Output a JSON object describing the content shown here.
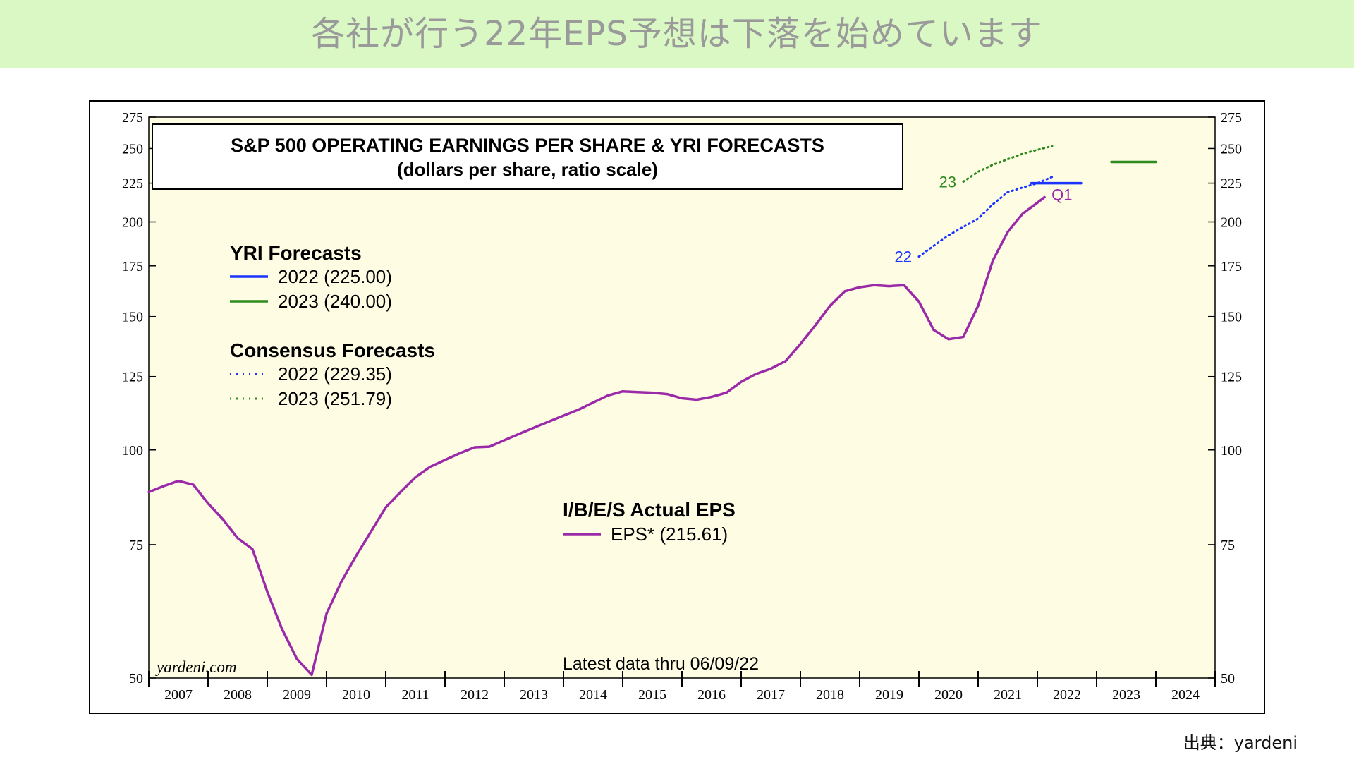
{
  "banner": {
    "title": "各社が行う22年EPS予想は下落を始めています"
  },
  "source": {
    "text": "出典：yardeni"
  },
  "chart_data": {
    "type": "line",
    "title": "S&P 500 OPERATING EARNINGS PER SHARE & YRI FORECASTS",
    "subtitle": "(dollars per share, ratio scale)",
    "y_scale": "log",
    "ylim": [
      50,
      275
    ],
    "yticks": [
      50,
      75,
      100,
      125,
      150,
      175,
      200,
      225,
      250,
      275
    ],
    "xlim": [
      2007,
      2025
    ],
    "x_tick_labels": [
      "2007",
      "2008",
      "2009",
      "2010",
      "2011",
      "2012",
      "2013",
      "2014",
      "2015",
      "2016",
      "2017",
      "2018",
      "2019",
      "2020",
      "2021",
      "2022",
      "2023",
      "2024"
    ],
    "grid": false,
    "background_color": "#fefde4",
    "watermark": "yardeni.com",
    "note": "Latest data thru 06/09/22",
    "legend_groups": [
      {
        "heading": "YRI Forecasts",
        "items": [
          {
            "label": "2022 (225.00)",
            "color": "#1a33ff",
            "style": "solid"
          },
          {
            "label": "2023 (240.00)",
            "color": "#2e8b1e",
            "style": "solid"
          }
        ]
      },
      {
        "heading": "Consensus Forecasts",
        "items": [
          {
            "label": "2022 (229.35)",
            "color": "#1a33ff",
            "style": "dotted"
          },
          {
            "label": "2023 (251.79)",
            "color": "#2e8b1e",
            "style": "dotted"
          }
        ]
      },
      {
        "heading": "I/B/E/S Actual EPS",
        "items": [
          {
            "label": "EPS* (215.61)",
            "color": "#9b2aa8",
            "style": "solid"
          }
        ]
      }
    ],
    "series": [
      {
        "name": "EPS* (215.61)",
        "color": "#9b2aa8",
        "style": "solid",
        "points": [
          [
            2007.0,
            88
          ],
          [
            2007.25,
            89.6
          ],
          [
            2007.5,
            91
          ],
          [
            2007.75,
            90
          ],
          [
            2008.0,
            85
          ],
          [
            2008.25,
            81
          ],
          [
            2008.5,
            76.5
          ],
          [
            2008.75,
            74
          ],
          [
            2009.0,
            65
          ],
          [
            2009.25,
            58
          ],
          [
            2009.5,
            53
          ],
          [
            2009.75,
            50.5
          ],
          [
            2010.0,
            60.8
          ],
          [
            2010.25,
            67
          ],
          [
            2010.5,
            72.5
          ],
          [
            2010.75,
            78
          ],
          [
            2011.0,
            84
          ],
          [
            2011.25,
            88
          ],
          [
            2011.5,
            92
          ],
          [
            2011.75,
            95
          ],
          [
            2012.0,
            97
          ],
          [
            2012.25,
            99
          ],
          [
            2012.5,
            100.8
          ],
          [
            2012.75,
            101
          ],
          [
            2013.0,
            103
          ],
          [
            2013.25,
            105
          ],
          [
            2013.5,
            107
          ],
          [
            2013.75,
            109
          ],
          [
            2014.0,
            111
          ],
          [
            2014.25,
            113
          ],
          [
            2014.5,
            115.5
          ],
          [
            2014.75,
            118
          ],
          [
            2015.0,
            119.5
          ],
          [
            2015.25,
            119.2
          ],
          [
            2015.5,
            119
          ],
          [
            2015.75,
            118.5
          ],
          [
            2016.0,
            117
          ],
          [
            2016.25,
            116.5
          ],
          [
            2016.5,
            117.5
          ],
          [
            2016.75,
            119
          ],
          [
            2017.0,
            123
          ],
          [
            2017.25,
            126
          ],
          [
            2017.5,
            128
          ],
          [
            2017.75,
            131
          ],
          [
            2018.0,
            138
          ],
          [
            2018.25,
            146
          ],
          [
            2018.5,
            155
          ],
          [
            2018.75,
            162
          ],
          [
            2019.0,
            164
          ],
          [
            2019.25,
            165
          ],
          [
            2019.5,
            164.5
          ],
          [
            2019.75,
            165
          ],
          [
            2020.0,
            157
          ],
          [
            2020.25,
            144
          ],
          [
            2020.5,
            140
          ],
          [
            2020.75,
            141
          ],
          [
            2021.0,
            155
          ],
          [
            2021.25,
            178
          ],
          [
            2021.5,
            194
          ],
          [
            2021.75,
            205
          ],
          [
            2022.0,
            212
          ],
          [
            2022.12,
            215.6
          ]
        ],
        "end_label": "Q1"
      },
      {
        "name": "Consensus 2022",
        "color": "#1a33ff",
        "style": "dotted",
        "start_label": "22",
        "points": [
          [
            2020.0,
            180
          ],
          [
            2020.25,
            186
          ],
          [
            2020.5,
            192
          ],
          [
            2020.75,
            197
          ],
          [
            2021.0,
            202
          ],
          [
            2021.25,
            211
          ],
          [
            2021.5,
            219
          ],
          [
            2021.75,
            222
          ],
          [
            2022.0,
            225
          ],
          [
            2022.25,
            229.35
          ]
        ]
      },
      {
        "name": "Consensus 2023",
        "color": "#2e8b1e",
        "style": "dotted",
        "start_label": "23",
        "points": [
          [
            2020.75,
            226
          ],
          [
            2021.0,
            233
          ],
          [
            2021.25,
            238
          ],
          [
            2021.5,
            242
          ],
          [
            2021.75,
            246
          ],
          [
            2022.0,
            249
          ],
          [
            2022.25,
            251.79
          ]
        ]
      },
      {
        "name": "YRI 2022",
        "color": "#1a33ff",
        "style": "solid",
        "points": [
          [
            2021.9,
            225
          ],
          [
            2022.75,
            225
          ]
        ]
      },
      {
        "name": "YRI 2023",
        "color": "#2e8b1e",
        "style": "solid",
        "points": [
          [
            2023.25,
            240
          ],
          [
            2024.0,
            240
          ]
        ]
      }
    ]
  }
}
